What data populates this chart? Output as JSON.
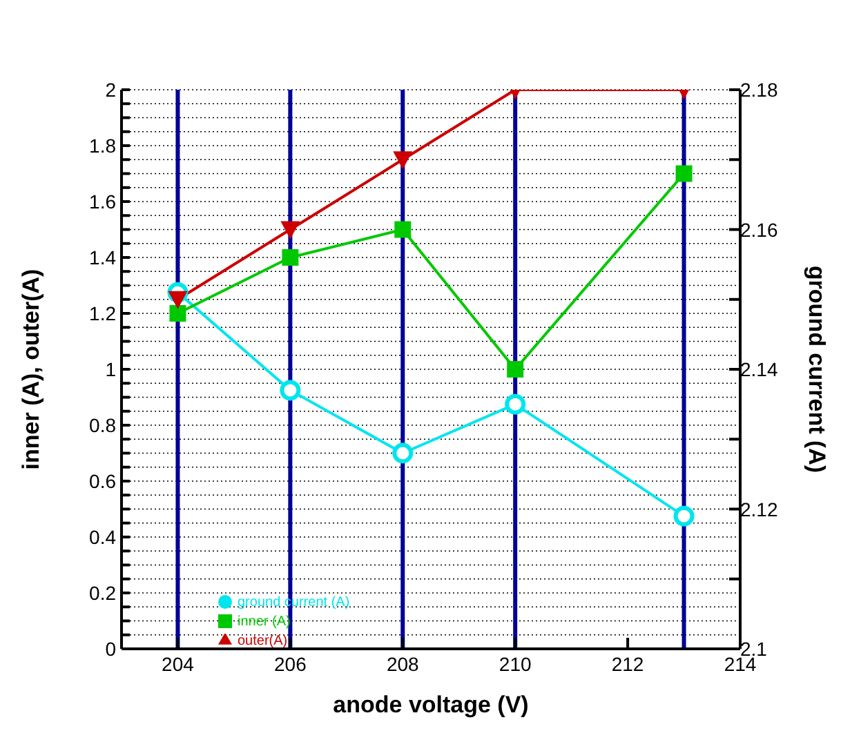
{
  "chart_data": {
    "type": "line",
    "x": [
      204,
      206,
      208,
      210,
      213
    ],
    "xlabel": "anode voltage (V)",
    "ylabel": "inner (A), outer(A)",
    "y2label": "ground current (A)",
    "xlim": [
      203,
      214
    ],
    "xticks": [
      204,
      206,
      208,
      210,
      212,
      214
    ],
    "ylim": [
      0,
      2
    ],
    "yticks": [
      0,
      {
        "value": 0.05,
        "label": null
      },
      {
        "value": 0.1,
        "label": null
      },
      {
        "value": 0.15,
        "label": null
      },
      0.2,
      {
        "value": 0.25,
        "label": null
      },
      {
        "value": 0.3,
        "label": null
      },
      {
        "value": 0.35,
        "label": null
      },
      0.4,
      {
        "value": 0.45,
        "label": null
      },
      {
        "value": 0.5,
        "label": null
      },
      {
        "value": 0.55,
        "label": null
      },
      0.6,
      {
        "value": 0.65,
        "label": null
      },
      {
        "value": 0.7,
        "label": null
      },
      {
        "value": 0.75,
        "label": null
      },
      0.8,
      {
        "value": 0.85,
        "label": null
      },
      {
        "value": 0.9,
        "label": null
      },
      {
        "value": 0.95,
        "label": null
      },
      1,
      {
        "value": 1.05,
        "label": null
      },
      {
        "value": 1.1,
        "label": null
      },
      {
        "value": 1.15,
        "label": null
      },
      1.2,
      {
        "value": 1.25,
        "label": null
      },
      {
        "value": 1.3,
        "label": null
      },
      {
        "value": 1.35,
        "label": null
      },
      1.4,
      {
        "value": 1.45,
        "label": null
      },
      {
        "value": 1.5,
        "label": null
      },
      {
        "value": 1.55,
        "label": null
      },
      1.6,
      {
        "value": 1.65,
        "label": null
      },
      {
        "value": 1.7,
        "label": null
      },
      {
        "value": 1.75,
        "label": null
      },
      1.8,
      {
        "value": 1.85,
        "label": null
      },
      {
        "value": 1.9,
        "label": null
      },
      {
        "value": 1.95,
        "label": null
      },
      2
    ],
    "y2lim": [
      2.1,
      2.18
    ],
    "y2ticks": [
      2.1,
      {
        "value": 2.11,
        "label": null
      },
      2.12,
      {
        "value": 2.13,
        "label": null
      },
      2.14,
      {
        "value": 2.15,
        "label": null
      },
      2.16,
      {
        "value": 2.17,
        "label": null
      },
      2.18
    ],
    "grid": "y",
    "legend": "bottom left",
    "ref_lines": [
      {
        "axis": "x",
        "value": 204,
        "color": "#000099"
      },
      {
        "axis": "x",
        "value": 206,
        "color": "#000099"
      },
      {
        "axis": "x",
        "value": 208,
        "color": "#000099"
      },
      {
        "axis": "x",
        "value": 210,
        "color": "#000099"
      },
      {
        "axis": "x",
        "value": 213,
        "color": "#000099"
      }
    ],
    "series": [
      {
        "name": "ground current (A)",
        "color": "#00e5ee",
        "marker": "circle",
        "axis": "y2",
        "values": [
          2.151,
          2.137,
          2.128,
          2.135,
          2.119
        ]
      },
      {
        "name": "inner (A)",
        "color": "#00c800",
        "marker": "square",
        "values": [
          1.2,
          1.4,
          1.5,
          1.0,
          1.7
        ]
      },
      {
        "name": "outer(A)",
        "color": "#cc0000",
        "marker": "triangle",
        "values": [
          1.25,
          1.5,
          1.75,
          2,
          2
        ]
      }
    ]
  }
}
